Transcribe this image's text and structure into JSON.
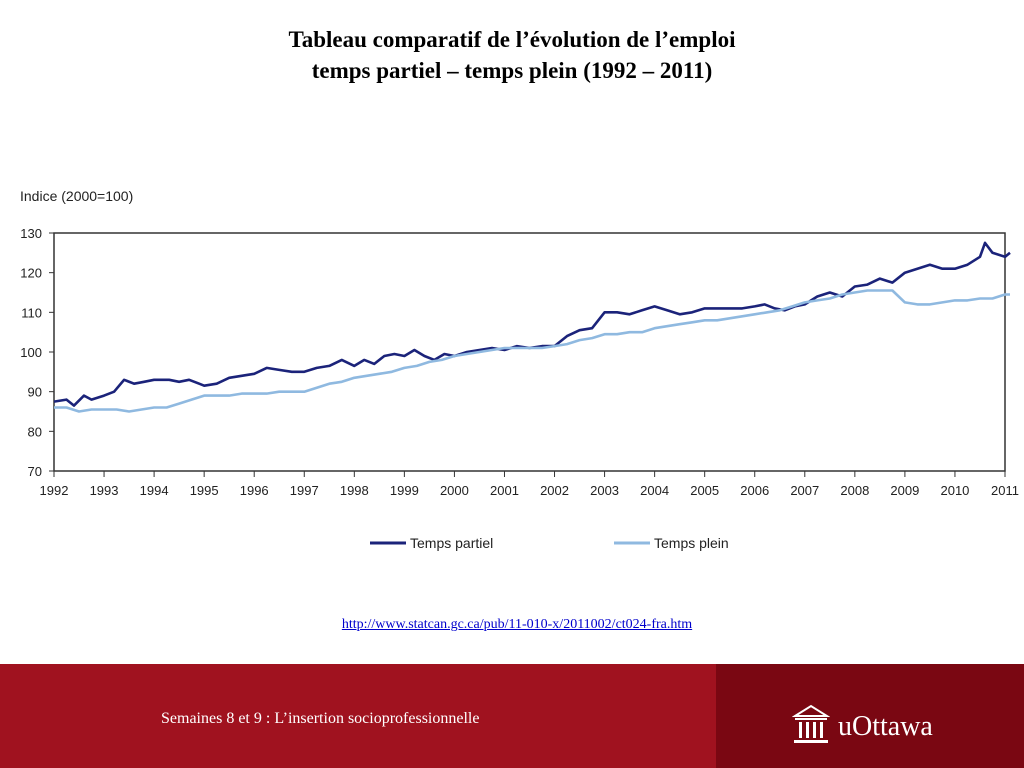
{
  "slide": {
    "title_line1": "Tableau comparatif de l’évolution de l’emploi",
    "title_line2": "temps partiel – temps plein (1992 – 2011)",
    "source_url": "http://www.statcan.gc.ca/pub/11-010-x/2011002/ct024-fra.htm",
    "footer_text": "Semaines 8 et 9 : L’insertion socioprofessionnelle",
    "logo_text": "uOttawa",
    "logo_icon": "university-building-icon"
  },
  "colors": {
    "part_time": "#1b237a",
    "full_time": "#8fb9e0",
    "footer": "#a0121f",
    "footer_dark": "#7a0712"
  },
  "chart_data": {
    "type": "line",
    "title": "",
    "ylabel": "Indice (2000=100)",
    "xlabel": "",
    "ylim": [
      70,
      130
    ],
    "xlim": [
      1992,
      2011
    ],
    "yticks": [
      70,
      80,
      90,
      100,
      110,
      120,
      130
    ],
    "xticks": [
      "1992",
      "1993",
      "1994",
      "1995",
      "1996",
      "1997",
      "1998",
      "1999",
      "2000",
      "2001",
      "2002",
      "2003",
      "2004",
      "2005",
      "2006",
      "2007",
      "2008",
      "2009",
      "2010",
      "2011"
    ],
    "grid": false,
    "legend_position": "bottom",
    "series": [
      {
        "name": "Temps partiel",
        "points": [
          [
            1992.0,
            87.5
          ],
          [
            1992.25,
            88
          ],
          [
            1992.4,
            86.5
          ],
          [
            1992.6,
            89
          ],
          [
            1992.75,
            88
          ],
          [
            1993.0,
            89
          ],
          [
            1993.2,
            90
          ],
          [
            1993.4,
            93
          ],
          [
            1993.6,
            92
          ],
          [
            1993.8,
            92.5
          ],
          [
            1994.0,
            93
          ],
          [
            1994.3,
            93
          ],
          [
            1994.5,
            92.5
          ],
          [
            1994.7,
            93
          ],
          [
            1994.9,
            92
          ],
          [
            1995.0,
            91.5
          ],
          [
            1995.25,
            92
          ],
          [
            1995.5,
            93.5
          ],
          [
            1995.75,
            94
          ],
          [
            1996.0,
            94.5
          ],
          [
            1996.25,
            96
          ],
          [
            1996.5,
            95.5
          ],
          [
            1996.75,
            95
          ],
          [
            1997.0,
            95
          ],
          [
            1997.25,
            96
          ],
          [
            1997.5,
            96.5
          ],
          [
            1997.75,
            98
          ],
          [
            1998.0,
            96.5
          ],
          [
            1998.2,
            98
          ],
          [
            1998.4,
            97
          ],
          [
            1998.6,
            99
          ],
          [
            1998.8,
            99.5
          ],
          [
            1999.0,
            99
          ],
          [
            1999.2,
            100.5
          ],
          [
            1999.4,
            99
          ],
          [
            1999.6,
            98
          ],
          [
            1999.8,
            99.5
          ],
          [
            2000.0,
            99
          ],
          [
            2000.25,
            100
          ],
          [
            2000.5,
            100.5
          ],
          [
            2000.75,
            101
          ],
          [
            2001.0,
            100.5
          ],
          [
            2001.25,
            101.5
          ],
          [
            2001.5,
            101
          ],
          [
            2001.75,
            101.5
          ],
          [
            2002.0,
            101.5
          ],
          [
            2002.25,
            104
          ],
          [
            2002.5,
            105.5
          ],
          [
            2002.75,
            106
          ],
          [
            2003.0,
            110
          ],
          [
            2003.25,
            110
          ],
          [
            2003.5,
            109.5
          ],
          [
            2003.75,
            110.5
          ],
          [
            2004.0,
            111.5
          ],
          [
            2004.25,
            110.5
          ],
          [
            2004.5,
            109.5
          ],
          [
            2004.75,
            110
          ],
          [
            2005.0,
            111
          ],
          [
            2005.25,
            111
          ],
          [
            2005.5,
            111
          ],
          [
            2005.75,
            111
          ],
          [
            2006.0,
            111.5
          ],
          [
            2006.2,
            112
          ],
          [
            2006.4,
            111
          ],
          [
            2006.6,
            110.5
          ],
          [
            2006.8,
            111.5
          ],
          [
            2007.0,
            112
          ],
          [
            2007.25,
            114
          ],
          [
            2007.5,
            115
          ],
          [
            2007.75,
            114
          ],
          [
            2008.0,
            116.5
          ],
          [
            2008.25,
            117
          ],
          [
            2008.5,
            118.5
          ],
          [
            2008.75,
            117.5
          ],
          [
            2009.0,
            120
          ],
          [
            2009.25,
            121
          ],
          [
            2009.5,
            122
          ],
          [
            2009.75,
            121
          ],
          [
            2010.0,
            121
          ],
          [
            2010.25,
            122
          ],
          [
            2010.5,
            124
          ],
          [
            2010.6,
            127.5
          ],
          [
            2010.75,
            125
          ],
          [
            2011.0,
            124
          ],
          [
            2011.1,
            125
          ]
        ]
      },
      {
        "name": "Temps plein",
        "points": [
          [
            1992.0,
            86
          ],
          [
            1992.25,
            86
          ],
          [
            1992.5,
            85
          ],
          [
            1992.75,
            85.5
          ],
          [
            1993.0,
            85.5
          ],
          [
            1993.25,
            85.5
          ],
          [
            1993.5,
            85
          ],
          [
            1993.75,
            85.5
          ],
          [
            1994.0,
            86
          ],
          [
            1994.25,
            86
          ],
          [
            1994.5,
            87
          ],
          [
            1994.75,
            88
          ],
          [
            1995.0,
            89
          ],
          [
            1995.25,
            89
          ],
          [
            1995.5,
            89
          ],
          [
            1995.75,
            89.5
          ],
          [
            1996.0,
            89.5
          ],
          [
            1996.25,
            89.5
          ],
          [
            1996.5,
            90
          ],
          [
            1996.75,
            90
          ],
          [
            1997.0,
            90
          ],
          [
            1997.25,
            91
          ],
          [
            1997.5,
            92
          ],
          [
            1997.75,
            92.5
          ],
          [
            1998.0,
            93.5
          ],
          [
            1998.25,
            94
          ],
          [
            1998.5,
            94.5
          ],
          [
            1998.75,
            95
          ],
          [
            1999.0,
            96
          ],
          [
            1999.25,
            96.5
          ],
          [
            1999.5,
            97.5
          ],
          [
            1999.75,
            98
          ],
          [
            2000.0,
            99
          ],
          [
            2000.25,
            99.5
          ],
          [
            2000.5,
            100
          ],
          [
            2000.75,
            100.5
          ],
          [
            2001.0,
            101
          ],
          [
            2001.25,
            101
          ],
          [
            2001.5,
            101
          ],
          [
            2001.75,
            101
          ],
          [
            2002.0,
            101.5
          ],
          [
            2002.25,
            102
          ],
          [
            2002.5,
            103
          ],
          [
            2002.75,
            103.5
          ],
          [
            2003.0,
            104.5
          ],
          [
            2003.25,
            104.5
          ],
          [
            2003.5,
            105
          ],
          [
            2003.75,
            105
          ],
          [
            2004.0,
            106
          ],
          [
            2004.25,
            106.5
          ],
          [
            2004.5,
            107
          ],
          [
            2004.75,
            107.5
          ],
          [
            2005.0,
            108
          ],
          [
            2005.25,
            108
          ],
          [
            2005.5,
            108.5
          ],
          [
            2005.75,
            109
          ],
          [
            2006.0,
            109.5
          ],
          [
            2006.25,
            110
          ],
          [
            2006.5,
            110.5
          ],
          [
            2006.75,
            111.5
          ],
          [
            2007.0,
            112.5
          ],
          [
            2007.25,
            113
          ],
          [
            2007.5,
            113.5
          ],
          [
            2007.75,
            114.5
          ],
          [
            2008.0,
            115
          ],
          [
            2008.25,
            115.5
          ],
          [
            2008.5,
            115.5
          ],
          [
            2008.75,
            115.5
          ],
          [
            2009.0,
            112.5
          ],
          [
            2009.25,
            112
          ],
          [
            2009.5,
            112
          ],
          [
            2009.75,
            112.5
          ],
          [
            2010.0,
            113
          ],
          [
            2010.25,
            113
          ],
          [
            2010.5,
            113.5
          ],
          [
            2010.75,
            113.5
          ],
          [
            2011.0,
            114.5
          ],
          [
            2011.1,
            114.5
          ]
        ]
      }
    ]
  }
}
